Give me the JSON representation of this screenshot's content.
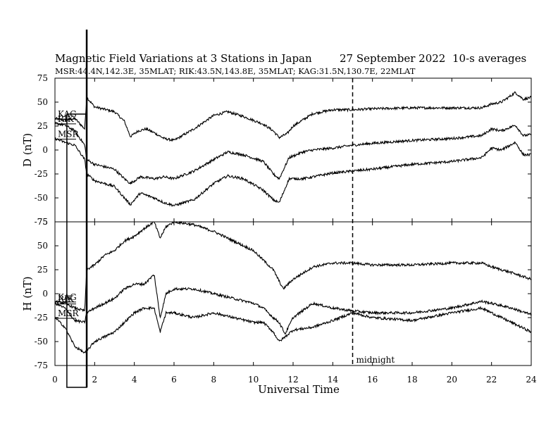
{
  "chart_data": {
    "type": "line",
    "title": "Magnetic Field Variations at 3 Stations in Japan",
    "date_label": "27 September 2022",
    "averaging": "10-s averages",
    "subtitle": "MSR:44.4N,142.3E, 35MLAT;  RIK:43.5N,143.8E, 35MLAT;  KAG:31.5N,130.7E, 22MLAT",
    "xlabel": "Universal Time",
    "xlim": [
      0,
      24
    ],
    "xticks": [
      "0",
      "2",
      "4",
      "6",
      "8",
      "10",
      "12",
      "14",
      "16",
      "18",
      "20",
      "22",
      "24"
    ],
    "x_tick_values": [
      0,
      2,
      4,
      6,
      8,
      10,
      12,
      14,
      16,
      18,
      20,
      22,
      24
    ],
    "grid": false,
    "annotations": [
      {
        "text": "midnight",
        "x": 15
      }
    ],
    "vertical_lines": [
      {
        "x": 15,
        "style": "dashed"
      },
      {
        "x": 1.6,
        "style": "solid"
      }
    ],
    "highlight_box": {
      "x_range": [
        0.6,
        1.6
      ]
    },
    "panels": [
      {
        "ylabel": "D (nT)",
        "ylim": [
          -75,
          75
        ],
        "yticks": [
          "75",
          "50",
          "25",
          "0",
          "-25",
          "-50",
          "-75"
        ],
        "y_tick_values": [
          75,
          50,
          25,
          0,
          -25,
          -50,
          -75
        ],
        "series": [
          {
            "name": "KAG",
            "x": [
              0,
              0.5,
              1,
              1.5,
              1.6,
              2,
              3,
              3.5,
              3.8,
              4.2,
              4.6,
              5,
              5.5,
              6,
              7,
              8,
              8.7,
              9.5,
              10.5,
              11,
              11.3,
              11.7,
              12,
              13,
              14,
              15,
              16,
              18,
              20,
              21.5,
              22,
              22.5,
              23.2,
              23.6,
              24
            ],
            "y": [
              33,
              31,
              33,
              22,
              55,
              45,
              40,
              30,
              14,
              20,
              22,
              18,
              12,
              10,
              22,
              36,
              40,
              35,
              27,
              20,
              13,
              17,
              25,
              38,
              42,
              42,
              43,
              44,
              44,
              44,
              48,
              50,
              60,
              53,
              55
            ]
          },
          {
            "name": "RIK",
            "x": [
              0,
              0.5,
              1,
              1.5,
              1.6,
              2,
              3,
              3.5,
              3.8,
              4.3,
              5,
              5.5,
              6,
              7,
              8,
              8.7,
              9.5,
              10.5,
              11,
              11.3,
              11.8,
              12.5,
              13,
              14,
              15,
              16,
              18,
              20,
              21.5,
              22,
              22.5,
              23.2,
              23.6,
              24
            ],
            "y": [
              28,
              26,
              20,
              5,
              -10,
              -15,
              -20,
              -30,
              -35,
              -28,
              -30,
              -28,
              -30,
              -22,
              -10,
              -2,
              -5,
              -12,
              -25,
              -30,
              -8,
              -2,
              0,
              2,
              5,
              7,
              10,
              12,
              15,
              22,
              20,
              26,
              15,
              16
            ]
          },
          {
            "name": "MSR",
            "x": [
              0,
              0.5,
              1,
              1.5,
              1.6,
              2,
              3,
              3.5,
              3.8,
              4.3,
              5,
              5.5,
              6,
              7,
              8,
              8.7,
              9.5,
              10.5,
              11,
              11.3,
              11.8,
              12.5,
              13,
              14,
              15,
              16,
              18,
              20,
              21.5,
              22,
              22.5,
              23.2,
              23.6,
              24
            ],
            "y": [
              12,
              8,
              5,
              -10,
              -25,
              -32,
              -38,
              -50,
              -57,
              -45,
              -50,
              -55,
              -58,
              -52,
              -35,
              -27,
              -30,
              -42,
              -52,
              -55,
              -30,
              -30,
              -28,
              -24,
              -22,
              -20,
              -15,
              -12,
              -8,
              2,
              0,
              8,
              -5,
              -5
            ]
          }
        ]
      },
      {
        "ylabel": "H (nT)",
        "ylim": [
          -75,
          75
        ],
        "yticks": [
          "75",
          "50",
          "25",
          "0",
          "-25",
          "-50",
          "-75"
        ],
        "y_tick_values": [
          75,
          50,
          25,
          0,
          -25,
          -50,
          -75
        ],
        "series": [
          {
            "name": "KAG",
            "x": [
              0,
              0.5,
              1,
              1.5,
              1.6,
              2,
              2.5,
              3,
              3.5,
              4,
              4.5,
              5,
              5.3,
              5.6,
              6,
              7,
              8,
              9,
              10,
              10.5,
              11,
              11.5,
              12,
              13,
              14,
              15,
              16,
              18,
              20,
              21.5,
              22,
              23,
              24
            ],
            "y": [
              -8,
              -10,
              -15,
              -18,
              25,
              30,
              40,
              45,
              55,
              60,
              68,
              75,
              58,
              70,
              75,
              72,
              65,
              55,
              45,
              35,
              25,
              5,
              15,
              28,
              32,
              32,
              30,
              30,
              32,
              32,
              28,
              22,
              15
            ]
          },
          {
            "name": "RIK",
            "x": [
              0,
              0.5,
              1,
              1.5,
              1.6,
              2,
              3,
              3.5,
              4,
              4.5,
              5,
              5.3,
              5.6,
              6,
              7,
              8,
              9,
              10,
              10.5,
              11,
              11.3,
              11.6,
              12,
              13,
              14,
              15,
              16,
              18,
              20,
              21.5,
              22,
              23,
              24
            ],
            "y": [
              -10,
              -15,
              -28,
              -30,
              -20,
              -15,
              -5,
              5,
              10,
              10,
              20,
              -25,
              0,
              5,
              5,
              0,
              -5,
              -10,
              -15,
              -25,
              -30,
              -42,
              -25,
              -10,
              -15,
              -18,
              -20,
              -20,
              -15,
              -8,
              -10,
              -15,
              -22
            ]
          },
          {
            "name": "MSR",
            "x": [
              0,
              0.5,
              1,
              1.5,
              1.6,
              2,
              3,
              3.5,
              4,
              4.5,
              5,
              5.3,
              5.6,
              6,
              7,
              8,
              9,
              10,
              10.5,
              11,
              11.3,
              11.6,
              12,
              13,
              14,
              15,
              16,
              18,
              20,
              21.5,
              22,
              23,
              24
            ],
            "y": [
              -25,
              -35,
              -55,
              -62,
              -60,
              -50,
              -40,
              -30,
              -20,
              -15,
              -15,
              -40,
              -20,
              -20,
              -25,
              -20,
              -25,
              -30,
              -30,
              -40,
              -50,
              -45,
              -38,
              -35,
              -28,
              -20,
              -25,
              -28,
              -20,
              -15,
              -20,
              -30,
              -40
            ]
          }
        ]
      }
    ]
  }
}
